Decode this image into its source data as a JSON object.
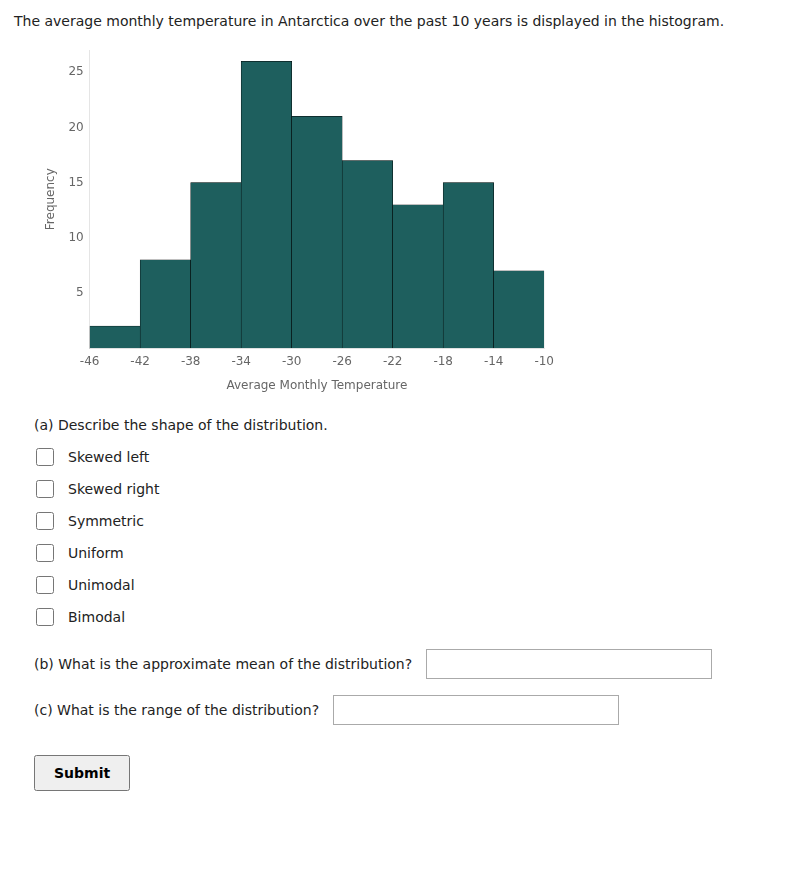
{
  "chart_data": {
    "type": "histogram",
    "title": "The average monthly temperature in Antarctica over the past 10 years is displayed in the histogram.",
    "bins": [
      -46,
      -42,
      -38,
      -34,
      -30,
      -26,
      -22,
      -18,
      -14,
      -10
    ],
    "values": [
      2,
      8,
      15,
      26,
      21,
      17,
      13,
      15,
      7
    ],
    "color": "#1e5f5e",
    "x_label": "Average Monthly Temperature",
    "y_label": "Frequency",
    "xlim": [
      -46,
      -10
    ],
    "xticks": [
      -46,
      -42,
      -38,
      -34,
      -30,
      -26,
      -22,
      -18,
      -14,
      -10
    ],
    "ylim": [
      0,
      27
    ],
    "yticks": [
      5,
      10,
      15,
      20,
      25
    ],
    "grid": false,
    "annotations": [
      {
        "type": "choice",
        "text": "(a) Describe the shape of the distribution.",
        "options": [
          "Skewed left",
          "Skewed right",
          "Symmetric",
          "Uniform",
          "Unimodal",
          "Bimodal"
        ]
      },
      {
        "type": "input",
        "text": "(b) What is the approximate mean of the distribution?"
      },
      {
        "type": "input",
        "text": "(c) What is the range of the distribution?"
      },
      {
        "type": "button",
        "text": "Submit"
      }
    ]
  }
}
